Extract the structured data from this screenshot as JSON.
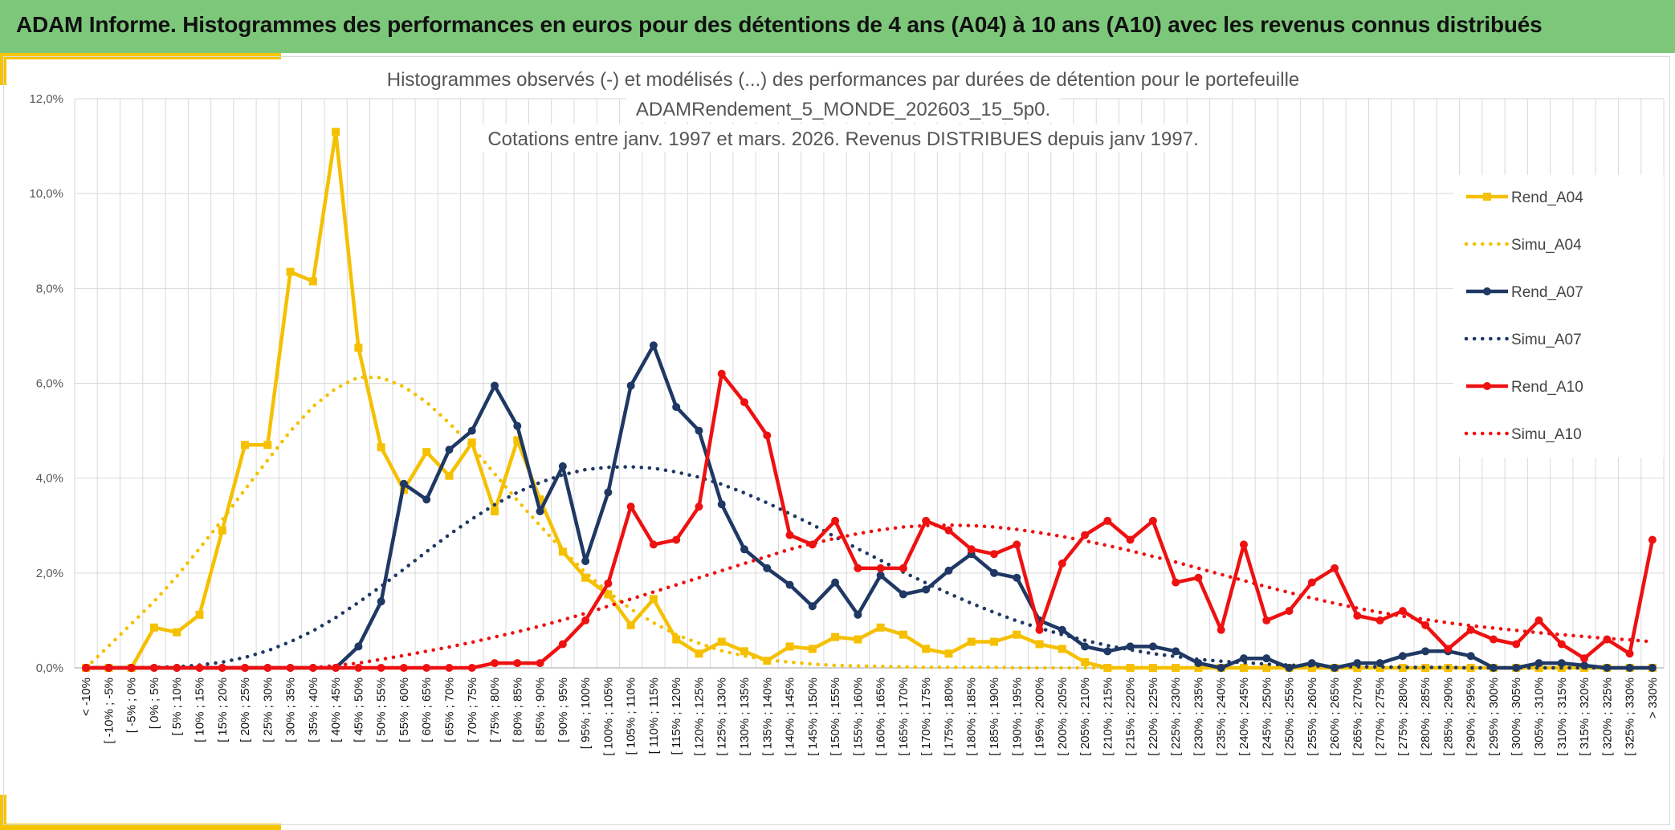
{
  "banner": {
    "title": "ADAM Informe. Histogrammes des performances en euros pour des détentions de 4 ans (A04) à 10 ans (A10) avec les revenus connus distribués"
  },
  "colors": {
    "banner_bg": "#7dc77a",
    "accent_yellow": "#f5c400",
    "a04": "#f5c000",
    "a07": "#1f3864",
    "a10": "#ee1111"
  },
  "chart_data": {
    "type": "line",
    "title_lines": [
      "Histogrammes observés (-) et modélisés (...) des performances par durées de détention pour le portefeuille",
      "ADAMRendement_5_MONDE_202603_15_5p0.",
      "Cotations entre janv. 1997 et mars. 2026. Revenus DISTRIBUES depuis janv 1997."
    ],
    "ylim": [
      0,
      12
    ],
    "yticks": [
      "0,0%",
      "2,0%",
      "4,0%",
      "6,0%",
      "8,0%",
      "10,0%",
      "12,0%"
    ],
    "yunit": "%",
    "grid": true,
    "legend_position": "right",
    "categories": [
      "< -10%",
      "[ -10% ; -5%",
      "[ -5% ; 0%",
      "[ 0% ; 5%",
      "[ 5% ; 10%",
      "[ 10% ; 15%",
      "[ 15% ; 20%",
      "[ 20% ; 25%",
      "[ 25% ; 30%",
      "[ 30% ; 35%",
      "[ 35% ; 40%",
      "[ 40% ; 45%",
      "[ 45% ; 50%",
      "[ 50% ; 55%",
      "[ 55% ; 60%",
      "[ 60% ; 65%",
      "[ 65% ; 70%",
      "[ 70% ; 75%",
      "[ 75% ; 80%",
      "[ 80% ; 85%",
      "[ 85% ; 90%",
      "[ 90% ; 95%",
      "[ 95% ; 100%",
      "[ 100% ; 105%",
      "[ 105% ; 110%",
      "[ 110% ; 115%",
      "[ 115% ; 120%",
      "[ 120% ; 125%",
      "[ 125% ; 130%",
      "[ 130% ; 135%",
      "[ 135% ; 140%",
      "[ 140% ; 145%",
      "[ 145% ; 150%",
      "[ 150% ; 155%",
      "[ 155% ; 160%",
      "[ 160% ; 165%",
      "[ 165% ; 170%",
      "[ 170% ; 175%",
      "[ 175% ; 180%",
      "[ 180% ; 185%",
      "[ 185% ; 190%",
      "[ 190% ; 195%",
      "[ 195% ; 200%",
      "[ 200% ; 205%",
      "[ 205% ; 210%",
      "[ 210% ; 215%",
      "[ 215% ; 220%",
      "[ 220% ; 225%",
      "[ 225% ; 230%",
      "[ 230% ; 235%",
      "[ 235% ; 240%",
      "[ 240% ; 245%",
      "[ 245% ; 250%",
      "[ 250% ; 255%",
      "[ 255% ; 260%",
      "[ 260% ; 265%",
      "[ 265% ; 270%",
      "[ 270% ; 275%",
      "[ 275% ; 280%",
      "[ 280% ; 285%",
      "[ 285% ; 290%",
      "[ 290% ; 295%",
      "[ 295% ; 300%",
      "[ 300% ; 305%",
      "[ 305% ; 310%",
      "[ 310% ; 315%",
      "[ 315% ; 320%",
      "[ 320% ; 325%",
      "[ 325% ; 330%",
      "> 330%"
    ],
    "series": [
      {
        "name": "Rend_A04",
        "style": "solid",
        "marker": "square",
        "color": "#f5c000",
        "values": [
          0,
          0,
          0,
          0.85,
          0.75,
          1.12,
          2.9,
          4.7,
          4.7,
          8.35,
          8.15,
          11.3,
          6.75,
          4.65,
          3.75,
          4.55,
          4.05,
          4.75,
          3.3,
          4.8,
          3.55,
          2.45,
          1.9,
          1.55,
          0.9,
          1.45,
          0.6,
          0.3,
          0.55,
          0.35,
          0.15,
          0.45,
          0.4,
          0.65,
          0.6,
          0.85,
          0.7,
          0.4,
          0.3,
          0.55,
          0.55,
          0.7,
          0.5,
          0.4,
          0.12,
          0,
          0,
          0,
          0,
          0,
          0,
          0,
          0,
          0,
          0,
          0,
          0,
          0,
          0,
          0,
          0,
          0,
          0,
          0,
          0,
          0,
          0,
          0,
          0,
          0
        ]
      },
      {
        "name": "Simu_A04",
        "style": "dotted",
        "marker": "none",
        "color": "#f5c000",
        "values": [
          0,
          0.46,
          0.93,
          1.4,
          1.93,
          2.52,
          3.12,
          3.76,
          4.38,
          4.99,
          5.51,
          5.89,
          6.13,
          6.12,
          5.93,
          5.6,
          5.16,
          4.66,
          4.09,
          3.53,
          3,
          2.48,
          2.01,
          1.6,
          1.24,
          0.95,
          0.7,
          0.52,
          0.36,
          0.25,
          0.17,
          0.12,
          0.08,
          0.05,
          0.04,
          0.03,
          0.02,
          0.01,
          0.01,
          0.01,
          0.01,
          0,
          0,
          0,
          0,
          0,
          0,
          0,
          0,
          0,
          0,
          0,
          0,
          0,
          0,
          0,
          0,
          0,
          0,
          0,
          0,
          0,
          0,
          0,
          0,
          0,
          0,
          0,
          0,
          0
        ]
      },
      {
        "name": "Rend_A07",
        "style": "solid",
        "marker": "circle",
        "color": "#1f3864",
        "values": [
          0,
          0,
          0,
          0,
          0,
          0,
          0,
          0,
          0,
          0,
          0,
          0,
          0.45,
          1.4,
          3.88,
          3.55,
          4.6,
          5,
          5.95,
          5.1,
          3.3,
          4.25,
          2.25,
          3.7,
          5.95,
          6.8,
          5.5,
          5,
          3.45,
          2.5,
          2.1,
          1.75,
          1.3,
          1.8,
          1.12,
          1.95,
          1.55,
          1.65,
          2.05,
          2.4,
          2,
          1.9,
          1,
          0.8,
          0.45,
          0.35,
          0.45,
          0.45,
          0.35,
          0.1,
          0,
          0.2,
          0.2,
          0,
          0.1,
          0,
          0.1,
          0.1,
          0.25,
          0.35,
          0.35,
          0.25,
          0,
          0,
          0.1,
          0.1,
          0.05,
          0,
          0,
          0
        ]
      },
      {
        "name": "Simu_A07",
        "style": "dotted",
        "marker": "none",
        "color": "#1f3864",
        "values": [
          0,
          0,
          0,
          0.01,
          0.02,
          0.06,
          0.12,
          0.22,
          0.36,
          0.55,
          0.78,
          1.06,
          1.38,
          1.72,
          2.08,
          2.45,
          2.81,
          3.14,
          3.44,
          3.7,
          3.91,
          4.07,
          4.18,
          4.23,
          4.24,
          4.21,
          4.13,
          4.02,
          3.87,
          3.69,
          3.48,
          3.25,
          3.02,
          2.76,
          2.51,
          2.27,
          2.02,
          1.79,
          1.57,
          1.36,
          1.17,
          0.99,
          0.84,
          0.7,
          0.58,
          0.47,
          0.38,
          0.3,
          0.24,
          0.18,
          0.14,
          0.11,
          0.08,
          0.06,
          0.04,
          0.03,
          0.02,
          0.02,
          0.01,
          0.01,
          0.01,
          0,
          0,
          0,
          0,
          0,
          0,
          0,
          0,
          0
        ]
      },
      {
        "name": "Rend_A10",
        "style": "solid",
        "marker": "circle",
        "color": "#ee1111",
        "values": [
          0,
          0,
          0,
          0,
          0,
          0,
          0,
          0,
          0,
          0,
          0,
          0,
          0,
          0,
          0,
          0,
          0,
          0,
          0.1,
          0.1,
          0.1,
          0.5,
          1,
          1.78,
          3.4,
          2.6,
          2.7,
          3.4,
          6.2,
          5.6,
          4.9,
          2.8,
          2.6,
          3.1,
          2.1,
          2.1,
          2.1,
          3.1,
          2.9,
          2.5,
          2.4,
          2.6,
          0.8,
          2.2,
          2.8,
          3.1,
          2.7,
          3.1,
          1.8,
          1.9,
          0.8,
          2.6,
          1,
          1.2,
          1.8,
          2.1,
          1.1,
          1,
          1.2,
          0.9,
          0.4,
          0.8,
          0.6,
          0.5,
          1,
          0.5,
          0.2,
          0.6,
          0.3,
          2.7
        ]
      },
      {
        "name": "Simu_A10",
        "style": "dotted",
        "marker": "none",
        "color": "#ee1111",
        "values": [
          0,
          0,
          0,
          0,
          0,
          0,
          0,
          0,
          0,
          0,
          0,
          0.05,
          0.1,
          0.18,
          0.26,
          0.35,
          0.44,
          0.54,
          0.65,
          0.76,
          0.88,
          1.01,
          1.15,
          1.3,
          1.45,
          1.6,
          1.75,
          1.9,
          2.05,
          2.2,
          2.35,
          2.5,
          2.62,
          2.73,
          2.83,
          2.91,
          2.97,
          3,
          3.01,
          3,
          2.97,
          2.92,
          2.85,
          2.77,
          2.68,
          2.58,
          2.47,
          2.35,
          2.23,
          2.1,
          1.97,
          1.84,
          1.71,
          1.59,
          1.47,
          1.36,
          1.26,
          1.17,
          1.09,
          1.02,
          0.95,
          0.89,
          0.84,
          0.79,
          0.74,
          0.7,
          0.66,
          0.62,
          0.59,
          0.55
        ]
      }
    ]
  }
}
